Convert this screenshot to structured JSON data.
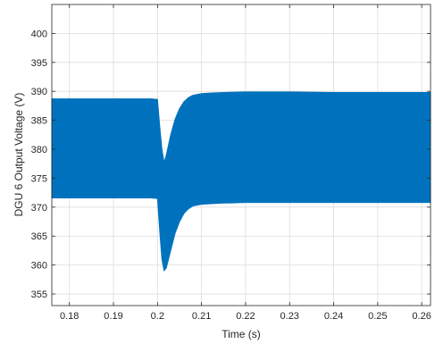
{
  "chart_data": {
    "type": "area",
    "title": "",
    "xlabel": "Time (s)",
    "ylabel": "DGU 6 Output Voltage (V)",
    "xlim": [
      0.176,
      0.262
    ],
    "ylim": [
      353,
      405
    ],
    "x_ticks": [
      0.18,
      0.19,
      0.2,
      0.21,
      0.22,
      0.23,
      0.24,
      0.25,
      0.26
    ],
    "x_tick_labels": [
      "0.18",
      "0.19",
      "0.2",
      "0.21",
      "0.22",
      "0.23",
      "0.24",
      "0.25",
      "0.26"
    ],
    "y_ticks": [
      355,
      360,
      365,
      370,
      375,
      380,
      385,
      390,
      395,
      400
    ],
    "y_tick_labels": [
      "355",
      "360",
      "365",
      "370",
      "375",
      "380",
      "385",
      "390",
      "395",
      "400"
    ],
    "grid": true,
    "series": [
      {
        "color": "#0072BD",
        "x": [
          0.176,
          0.1985,
          0.2,
          0.2005,
          0.201,
          0.2015,
          0.202,
          0.203,
          0.204,
          0.205,
          0.206,
          0.207,
          0.208,
          0.21,
          0.212,
          0.215,
          0.22,
          0.23,
          0.24,
          0.25,
          0.262
        ],
        "upper": [
          388.7,
          388.7,
          388.6,
          384.0,
          380.0,
          377.7,
          379.0,
          382.5,
          385.2,
          387.0,
          388.2,
          388.9,
          389.3,
          389.6,
          389.7,
          389.8,
          389.9,
          389.9,
          389.8,
          389.8,
          389.8
        ],
        "lower": [
          371.6,
          371.6,
          371.5,
          366.0,
          361.0,
          359.0,
          359.5,
          362.5,
          365.5,
          367.5,
          368.9,
          369.7,
          370.2,
          370.5,
          370.6,
          370.7,
          370.8,
          370.8,
          370.8,
          370.8,
          370.8
        ]
      }
    ]
  }
}
